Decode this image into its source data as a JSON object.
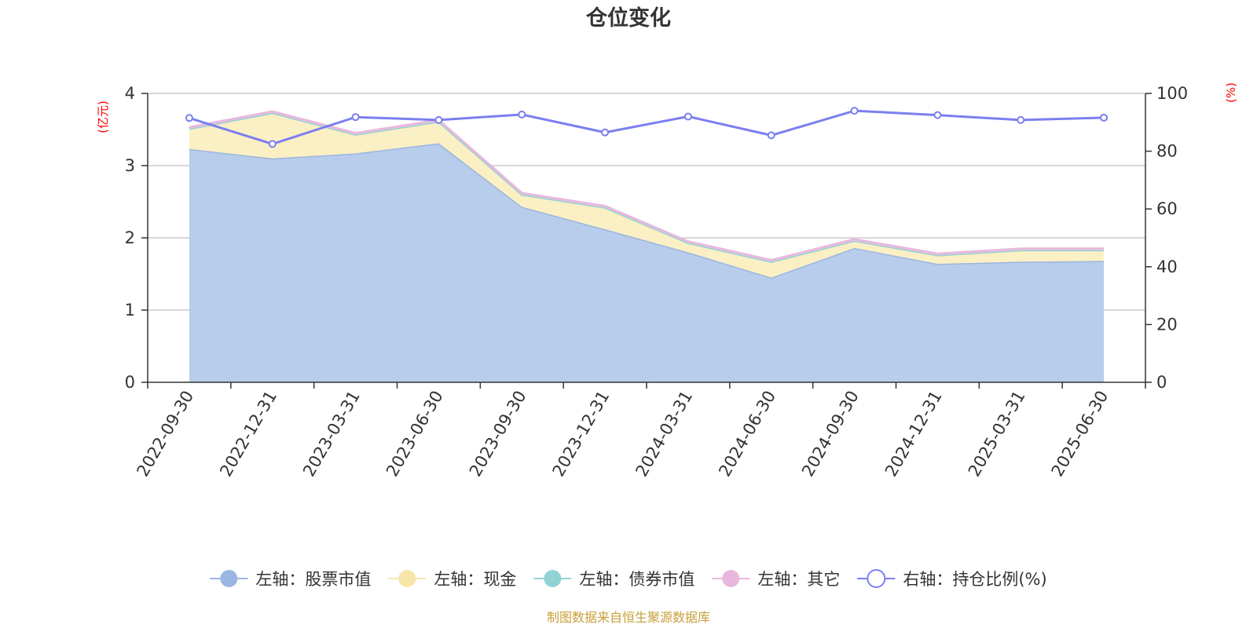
{
  "chart_data": {
    "type": "area",
    "title": "仓位变化",
    "left_unit": "(亿元)",
    "right_unit": "(%)",
    "categories": [
      "2022-09-30",
      "2022-12-31",
      "2023-03-31",
      "2023-06-30",
      "2023-09-30",
      "2023-12-31",
      "2024-03-31",
      "2024-06-30",
      "2024-09-30",
      "2024-12-31",
      "2025-03-31",
      "2025-06-30"
    ],
    "left_axis": {
      "min": 0,
      "max": 4,
      "ticks": [
        0,
        1,
        2,
        3,
        4
      ]
    },
    "right_axis": {
      "min": 0,
      "max": 100,
      "ticks": [
        0,
        20,
        40,
        60,
        80,
        100
      ]
    },
    "stacked": true,
    "series": [
      {
        "name": "左轴：股票市值",
        "axis": "left",
        "color": "#9bb6e0",
        "fill": "#b8cdeb",
        "values": [
          3.23,
          3.1,
          3.17,
          3.31,
          2.43,
          2.12,
          1.8,
          1.45,
          1.86,
          1.64,
          1.67,
          1.68
        ]
      },
      {
        "name": "左轴：现金",
        "axis": "left",
        "color": "#f8e6a8",
        "fill": "#fbefc4",
        "values": [
          0.28,
          0.63,
          0.26,
          0.3,
          0.17,
          0.3,
          0.13,
          0.22,
          0.1,
          0.12,
          0.16,
          0.15
        ]
      },
      {
        "name": "左轴：债券市值",
        "axis": "left",
        "color": "#93d2d4",
        "fill": "#b3e1e2",
        "values": [
          0,
          0,
          0,
          0,
          0,
          0,
          0,
          0,
          0,
          0,
          0,
          0
        ]
      },
      {
        "name": "左轴：其它",
        "axis": "left",
        "color": "#e7b8dc",
        "fill": "#f1d2e8",
        "values": [
          0.02,
          0.02,
          0.02,
          0.02,
          0.02,
          0.02,
          0.02,
          0.02,
          0.02,
          0.02,
          0.02,
          0.02
        ]
      },
      {
        "name": "右轴：持仓比例(%)",
        "axis": "right",
        "type": "line",
        "color": "#7b7ff0",
        "values": [
          91.5,
          82.5,
          91.8,
          90.8,
          92.7,
          86.5,
          92.0,
          85.5,
          94.0,
          92.5,
          90.8,
          91.6
        ]
      }
    ],
    "grid": true,
    "legend_position": "bottom",
    "source_note": "制图数据来自恒生聚源数据库"
  }
}
